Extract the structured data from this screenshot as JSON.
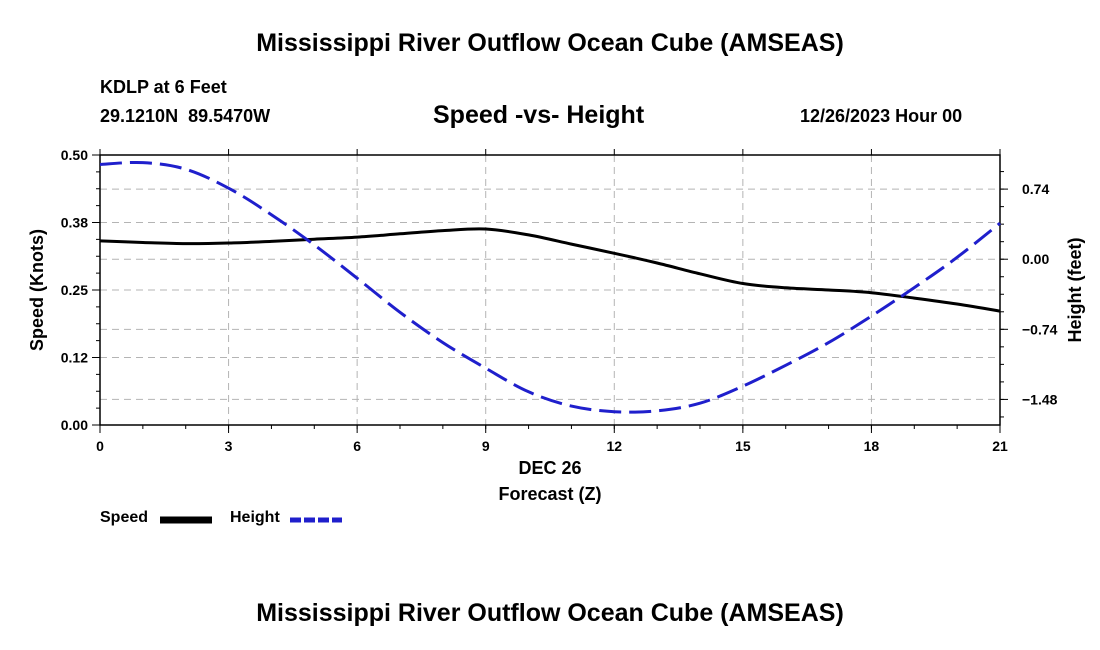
{
  "header": {
    "title": "Mississippi River Outflow Ocean Cube (AMSEAS)",
    "station": "KDLP at 6 Feet",
    "coords": "29.1210N  89.5470W",
    "subtitle": "Speed -vs- Height",
    "datetime": "12/26/2023 Hour 00"
  },
  "footer": {
    "title": "Mississippi River Outflow Ocean Cube (AMSEAS)"
  },
  "colors": {
    "speed": "#000000",
    "height": "#1f1fcc",
    "grid": "#b4b4b4"
  },
  "chart_data": {
    "type": "line",
    "title": "Speed -vs- Height",
    "xlabel": "Forecast (Z)",
    "xsublabel": "DEC 26",
    "ylabel_left": "Speed (Knots)",
    "ylabel_right": "Height (feet)",
    "xlim": [
      0,
      21
    ],
    "ylim_left": [
      0,
      0.5
    ],
    "ylim_right": [
      -1.75,
      1.1
    ],
    "x_ticks": [
      "0",
      "3",
      "6",
      "9",
      "12",
      "15",
      "18",
      "21"
    ],
    "left_ticks": [
      "0.00",
      "0.12",
      "0.25",
      "0.38",
      "0.50"
    ],
    "left_tick_values": [
      0,
      0.125,
      0.25,
      0.375,
      0.5
    ],
    "right_ticks": [
      "−1.48",
      "−0.74",
      "0.00",
      "0.74"
    ],
    "right_tick_values": [
      -1.48,
      -0.74,
      0,
      0.74
    ],
    "grid": true,
    "series": [
      {
        "name": "Speed",
        "axis": "left",
        "style": "solid",
        "x": [
          0,
          1,
          2,
          3,
          4,
          5,
          6,
          7,
          8,
          9,
          10,
          11,
          12,
          13,
          14,
          15,
          16,
          17,
          18,
          19,
          20,
          21
        ],
        "values": [
          0.341,
          0.338,
          0.336,
          0.337,
          0.34,
          0.344,
          0.348,
          0.354,
          0.36,
          0.363,
          0.352,
          0.335,
          0.318,
          0.3,
          0.28,
          0.262,
          0.254,
          0.25,
          0.245,
          0.235,
          0.224,
          0.211
        ]
      },
      {
        "name": "Height",
        "axis": "right",
        "style": "dashed",
        "x": [
          0,
          1,
          2,
          3,
          4,
          5,
          6,
          7,
          8,
          9,
          10,
          11,
          12,
          13,
          14,
          15,
          16,
          17,
          18,
          19,
          20,
          21
        ],
        "values": [
          1.0,
          1.02,
          0.95,
          0.75,
          0.47,
          0.15,
          -0.2,
          -0.56,
          -0.88,
          -1.15,
          -1.4,
          -1.55,
          -1.61,
          -1.6,
          -1.52,
          -1.34,
          -1.12,
          -0.88,
          -0.6,
          -0.3,
          0.02,
          0.38
        ]
      }
    ]
  },
  "legend": {
    "speed_label": "Speed",
    "height_label": "Height"
  }
}
